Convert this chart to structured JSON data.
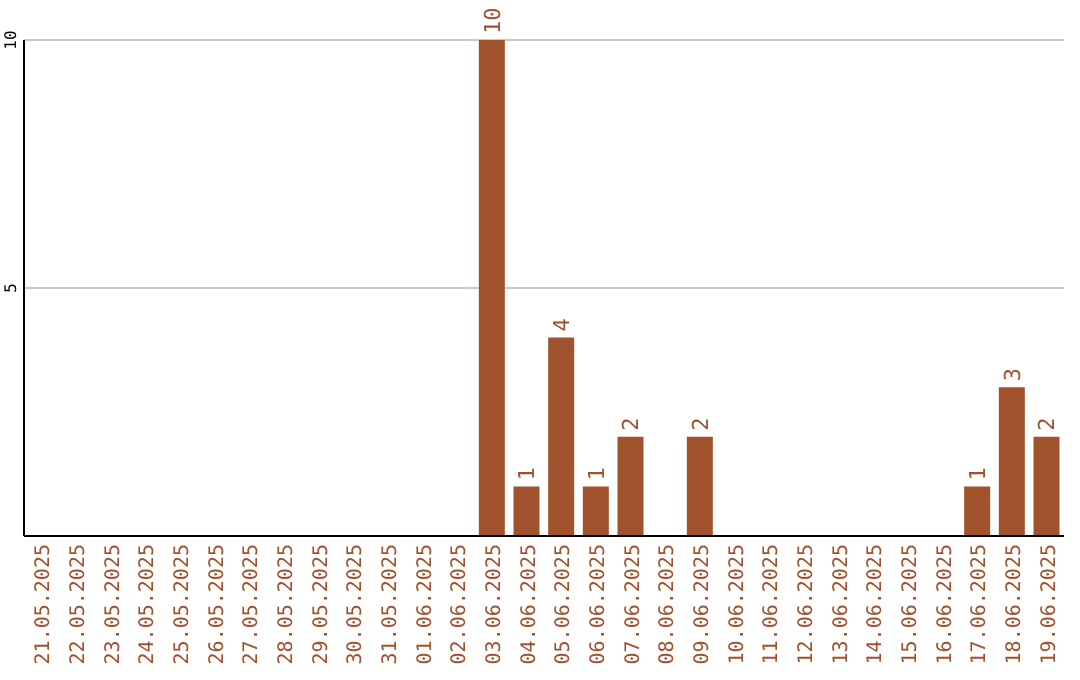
{
  "chart_data": {
    "type": "bar",
    "categories": [
      "21.05.2025",
      "22.05.2025",
      "23.05.2025",
      "24.05.2025",
      "25.05.2025",
      "26.05.2025",
      "27.05.2025",
      "28.05.2025",
      "29.05.2025",
      "30.05.2025",
      "31.05.2025",
      "01.06.2025",
      "02.06.2025",
      "03.06.2025",
      "04.06.2025",
      "05.06.2025",
      "06.06.2025",
      "07.06.2025",
      "08.06.2025",
      "09.06.2025",
      "10.06.2025",
      "11.06.2025",
      "12.06.2025",
      "13.06.2025",
      "14.06.2025",
      "15.06.2025",
      "16.06.2025",
      "17.06.2025",
      "18.06.2025",
      "19.06.2025"
    ],
    "values": [
      null,
      null,
      null,
      null,
      null,
      null,
      null,
      null,
      null,
      null,
      null,
      null,
      null,
      10,
      1,
      4,
      1,
      2,
      null,
      2,
      null,
      null,
      null,
      null,
      null,
      null,
      null,
      1,
      3,
      2
    ],
    "color": "#a0522d",
    "ylim": [
      0,
      10
    ],
    "yticks": [
      5,
      10
    ],
    "grid": "y",
    "data_labels": true
  }
}
